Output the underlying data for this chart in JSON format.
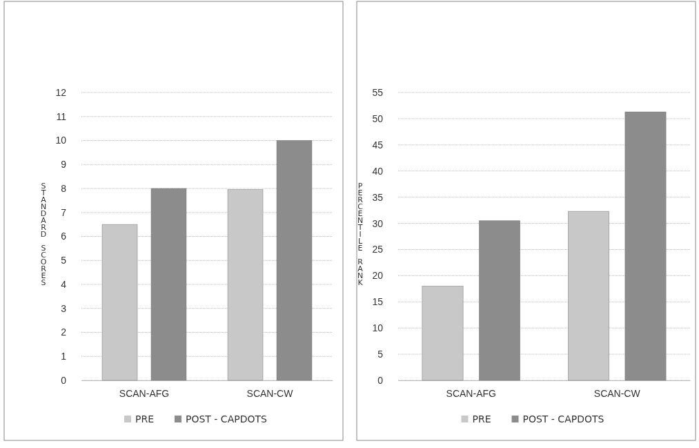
{
  "chart_data": [
    {
      "type": "bar",
      "ylabel": "STANDARD SCORES",
      "categories": [
        "SCAN-AFG",
        "SCAN-CW"
      ],
      "series": [
        {
          "name": "PRE",
          "color": "#c8c8c8",
          "values": [
            6.5,
            7.95
          ]
        },
        {
          "name": "POST - CAPDOTS",
          "color": "#8c8c8c",
          "values": [
            8,
            10
          ]
        }
      ],
      "ylim": [
        0,
        12
      ],
      "yticks": [
        0,
        1,
        2,
        3,
        4,
        5,
        6,
        7,
        8,
        9,
        10,
        11,
        12
      ],
      "grid": "y",
      "legend": "bottom"
    },
    {
      "type": "bar",
      "ylabel": "PERCENTILE RANK",
      "categories": [
        "SCAN-AFG",
        "SCAN-CW"
      ],
      "series": [
        {
          "name": "PRE",
          "color": "#c8c8c8",
          "values": [
            18,
            32.3
          ]
        },
        {
          "name": "POST - CAPDOTS",
          "color": "#8c8c8c",
          "values": [
            30.5,
            51.3
          ]
        }
      ],
      "ylim": [
        0,
        55
      ],
      "yticks": [
        0,
        5,
        10,
        15,
        20,
        25,
        30,
        35,
        40,
        45,
        50,
        55
      ],
      "grid": "y",
      "legend": "bottom"
    }
  ]
}
